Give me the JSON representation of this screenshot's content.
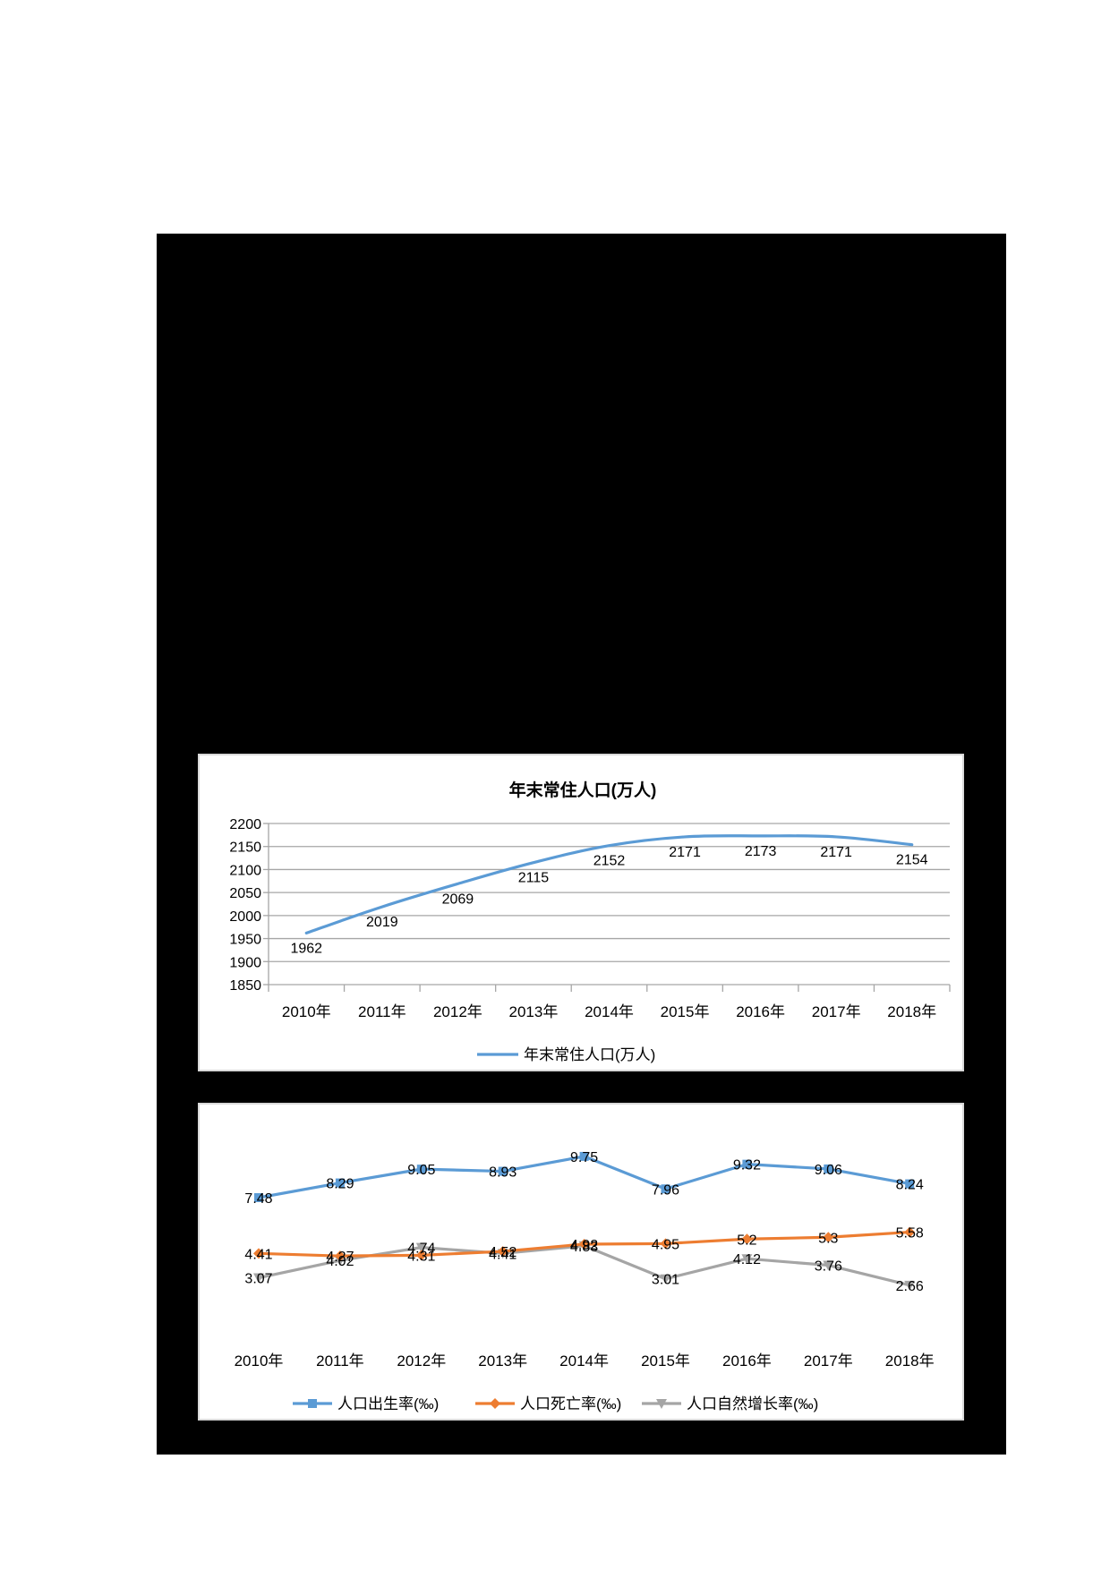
{
  "page": {
    "background": "#ffffff",
    "block_color": "#000000"
  },
  "chart_data": [
    {
      "type": "line",
      "title": "年末常住人口(万人)",
      "xlabel": "",
      "ylabel": "",
      "categories": [
        "2010年",
        "2011年",
        "2012年",
        "2013年",
        "2014年",
        "2015年",
        "2016年",
        "2017年",
        "2018年"
      ],
      "series": [
        {
          "name": "年末常住人口(万人)",
          "color": "#5b9bd5",
          "values": [
            1962,
            2019,
            2069,
            2115,
            2152,
            2171,
            2173,
            2171,
            2154
          ]
        }
      ],
      "yticks": [
        1850,
        1900,
        1950,
        2000,
        2050,
        2100,
        2150,
        2200
      ],
      "ylim": [
        1850,
        2200
      ],
      "grid": true,
      "data_labels": true,
      "legend_position": "bottom"
    },
    {
      "type": "line",
      "title": "",
      "xlabel": "",
      "ylabel": "",
      "categories": [
        "2010年",
        "2011年",
        "2012年",
        "2013年",
        "2014年",
        "2015年",
        "2016年",
        "2017年",
        "2018年"
      ],
      "series": [
        {
          "name": "人口出生率(‰)",
          "color": "#5b9bd5",
          "marker": "square",
          "values": [
            7.48,
            8.29,
            9.05,
            8.93,
            9.75,
            7.96,
            9.32,
            9.06,
            8.24
          ]
        },
        {
          "name": "人口死亡率(‰)",
          "color": "#ed7d31",
          "marker": "diamond",
          "values": [
            4.41,
            4.27,
            4.31,
            4.52,
            4.92,
            4.95,
            5.2,
            5.3,
            5.58
          ]
        },
        {
          "name": "人口自然增长率(‰)",
          "color": "#a5a5a5",
          "marker": "triangle-down",
          "values": [
            3.07,
            4.02,
            4.74,
            4.41,
            4.83,
            3.01,
            4.12,
            3.76,
            2.66
          ]
        }
      ],
      "grid": false,
      "y_axis_visible": false,
      "data_labels": true,
      "legend_position": "bottom"
    }
  ]
}
